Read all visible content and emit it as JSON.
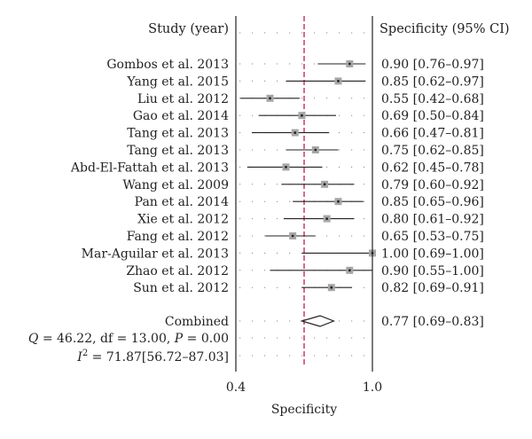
{
  "chart_data": {
    "type": "forest",
    "headers": {
      "study": "Study (year)",
      "estimate": "Specificity (95% CI)"
    },
    "xlabel": "Specificity",
    "xlim": [
      0.4,
      1.0
    ],
    "ticks": [
      {
        "value": 0.4,
        "label": "0.4"
      },
      {
        "value": 1.0,
        "label": "1.0"
      }
    ],
    "reference_line": 0.7,
    "studies": [
      {
        "name": "Gombos et al. 2013",
        "est": 0.9,
        "lo": 0.76,
        "hi": 0.97,
        "text": "0.90 [0.76–0.97]"
      },
      {
        "name": "Yang et al. 2015",
        "est": 0.85,
        "lo": 0.62,
        "hi": 0.97,
        "text": "0.85 [0.62–0.97]"
      },
      {
        "name": "Liu et al. 2012",
        "est": 0.55,
        "lo": 0.42,
        "hi": 0.68,
        "text": "0.55 [0.42–0.68]"
      },
      {
        "name": "Gao et al. 2014",
        "est": 0.69,
        "lo": 0.5,
        "hi": 0.84,
        "text": "0.69 [0.50–0.84]"
      },
      {
        "name": "Tang et al. 2013",
        "est": 0.66,
        "lo": 0.47,
        "hi": 0.81,
        "text": "0.66 [0.47–0.81]"
      },
      {
        "name": "Tang et al. 2013",
        "est": 0.75,
        "lo": 0.62,
        "hi": 0.85,
        "text": "0.75 [0.62–0.85]"
      },
      {
        "name": "Abd-El-Fattah et al. 2013",
        "est": 0.62,
        "lo": 0.45,
        "hi": 0.78,
        "text": "0.62 [0.45–0.78]"
      },
      {
        "name": "Wang et al. 2009",
        "est": 0.79,
        "lo": 0.6,
        "hi": 0.92,
        "text": "0.79 [0.60–0.92]"
      },
      {
        "name": "Pan et al. 2014",
        "est": 0.85,
        "lo": 0.65,
        "hi": 0.96,
        "text": "0.85 [0.65–0.96]"
      },
      {
        "name": "Xie et al. 2012",
        "est": 0.8,
        "lo": 0.61,
        "hi": 0.92,
        "text": "0.80 [0.61–0.92]"
      },
      {
        "name": "Fang et al. 2012",
        "est": 0.65,
        "lo": 0.53,
        "hi": 0.75,
        "text": "0.65 [0.53–0.75]"
      },
      {
        "name": "Mar-Aguilar et al. 2013",
        "est": 1.0,
        "lo": 0.69,
        "hi": 1.0,
        "text": "1.00 [0.69–1.00]"
      },
      {
        "name": "Zhao et al. 2012",
        "est": 0.9,
        "lo": 0.55,
        "hi": 1.0,
        "text": "0.90 [0.55–1.00]"
      },
      {
        "name": "Sun et al. 2012",
        "est": 0.82,
        "lo": 0.69,
        "hi": 0.91,
        "text": "0.82 [0.69–0.91]"
      }
    ],
    "combined": {
      "name": "Combined",
      "est": 0.77,
      "lo": 0.69,
      "hi": 0.83,
      "text": "0.77 [0.69–0.83]"
    },
    "heterogeneity": {
      "q_label": "Q",
      "q_stats": " = 46.22, df = 13.00, ",
      "p_label": "P",
      "p_value": " = 0.00",
      "i2_label": "I",
      "i2_sup": "2",
      "i2_value": " = 71.87[56.72–87.03]"
    },
    "colors": {
      "marker": "#a6a6a6",
      "reference_line": "#c2185b",
      "dots": "#8a8a8a"
    }
  }
}
